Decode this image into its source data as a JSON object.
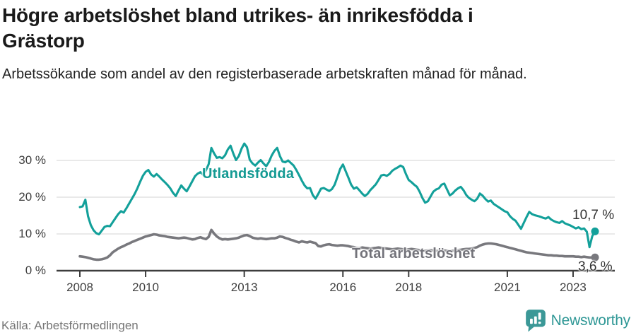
{
  "header": {
    "title_line1": "Högre arbetslöshet bland utrikes- än inrikesfödda i",
    "title_line2": "Grästorp",
    "subtitle": "Arbetssökande som andel av den registerbaserade arbetskraften månad för månad."
  },
  "footer": {
    "source": "Källa: Arbetsförmedlingen",
    "brand": "Newsworthy",
    "brand_color": "#2e9795"
  },
  "chart_data": {
    "type": "line",
    "x_domain": {
      "start": "2008-01",
      "end": "2023-09",
      "interval": "month"
    },
    "x_tick_years": [
      2008,
      2010,
      2013,
      2016,
      2018,
      2021,
      2023
    ],
    "y_ticks": [
      {
        "value": 0,
        "label": "0 %"
      },
      {
        "value": 10,
        "label": "10 %"
      },
      {
        "value": 20,
        "label": "20 %"
      },
      {
        "value": 30,
        "label": "30 %"
      }
    ],
    "ylim": [
      0,
      36
    ],
    "grid": "horizontal",
    "legend": "inline-labels",
    "series": [
      {
        "name": "Utlandsfödda",
        "color": "#13a09a",
        "end_label": "10,7 %",
        "end_value": 10.7,
        "values": [
          17.3,
          17.5,
          19.3,
          14.8,
          12.4,
          11.0,
          10.2,
          9.9,
          10.9,
          11.9,
          12.2,
          12.1,
          13.2,
          14.3,
          15.4,
          16.2,
          15.8,
          17.0,
          18.3,
          19.6,
          20.9,
          22.4,
          24.2,
          25.8,
          26.9,
          27.4,
          26.2,
          25.6,
          26.3,
          25.6,
          24.8,
          24.1,
          23.3,
          22.4,
          21.2,
          20.3,
          21.8,
          23.2,
          22.3,
          21.6,
          22.9,
          24.3,
          25.7,
          26.4,
          26.8,
          26.1,
          27.3,
          29.0,
          33.4,
          31.9,
          30.7,
          30.9,
          30.6,
          31.4,
          33.0,
          34.0,
          31.9,
          30.1,
          31.2,
          33.2,
          34.6,
          33.6,
          30.2,
          29.2,
          28.6,
          29.4,
          30.1,
          29.2,
          28.4,
          29.6,
          31.3,
          32.6,
          33.4,
          31.2,
          29.7,
          29.5,
          30.0,
          29.3,
          28.6,
          27.4,
          26.0,
          24.5,
          23.2,
          22.4,
          22.5,
          20.6,
          19.6,
          20.9,
          22.3,
          22.5,
          22.1,
          21.7,
          22.2,
          23.4,
          25.5,
          27.7,
          28.9,
          27.1,
          25.3,
          23.4,
          22.3,
          22.7,
          21.9,
          21.0,
          20.3,
          20.9,
          21.9,
          22.7,
          23.5,
          24.7,
          25.9,
          26.1,
          25.8,
          26.3,
          27.2,
          27.7,
          28.1,
          28.6,
          28.2,
          26.3,
          24.7,
          24.1,
          23.4,
          22.8,
          21.5,
          19.8,
          18.5,
          18.9,
          20.2,
          21.5,
          22.1,
          22.4,
          23.4,
          23.7,
          22.1,
          20.5,
          21.0,
          21.8,
          22.4,
          22.8,
          21.9,
          20.6,
          19.8,
          19.3,
          18.9,
          19.6,
          21.0,
          20.4,
          19.5,
          18.8,
          19.1,
          18.2,
          17.7,
          17.2,
          16.7,
          16.2,
          15.9,
          14.8,
          14.1,
          13.6,
          12.5,
          11.4,
          13.0,
          14.6,
          16.0,
          15.4,
          15.1,
          14.9,
          14.7,
          14.4,
          14.2,
          14.6,
          13.9,
          13.5,
          13.2,
          13.0,
          13.5,
          12.9,
          12.6,
          12.3,
          11.9,
          11.5,
          11.8,
          11.3,
          11.5,
          10.6,
          6.4,
          9.4,
          10.7
        ]
      },
      {
        "name": "Total arbetslöshet",
        "color": "#78787d",
        "end_label": "3,6 %",
        "end_value": 3.6,
        "values": [
          3.9,
          3.8,
          3.7,
          3.5,
          3.3,
          3.1,
          3.0,
          3.0,
          3.1,
          3.3,
          3.6,
          4.2,
          5.0,
          5.5,
          6.0,
          6.4,
          6.7,
          7.1,
          7.4,
          7.8,
          8.1,
          8.4,
          8.7,
          9.0,
          9.3,
          9.5,
          9.7,
          9.9,
          9.8,
          9.6,
          9.5,
          9.4,
          9.2,
          9.1,
          9.0,
          8.9,
          8.8,
          8.9,
          9.0,
          8.9,
          8.7,
          8.5,
          8.6,
          8.9,
          9.1,
          8.8,
          8.6,
          9.2,
          11.1,
          10.1,
          9.3,
          8.8,
          8.5,
          8.6,
          8.5,
          8.6,
          8.7,
          8.8,
          9.0,
          9.3,
          9.6,
          9.7,
          9.4,
          9.0,
          8.8,
          8.7,
          8.8,
          8.7,
          8.6,
          8.7,
          8.8,
          8.8,
          9.0,
          9.3,
          9.2,
          8.9,
          8.7,
          8.4,
          8.2,
          7.9,
          7.7,
          8.0,
          7.8,
          7.7,
          7.9,
          7.7,
          7.5,
          6.7,
          6.6,
          6.9,
          7.1,
          7.2,
          7.0,
          6.9,
          6.8,
          6.9,
          6.9,
          6.8,
          6.7,
          6.5,
          6.4,
          6.2,
          6.1,
          6.3,
          6.2,
          6.1,
          6.0,
          6.1,
          6.2,
          6.3,
          6.2,
          6.1,
          6.0,
          5.9,
          5.8,
          5.9,
          6.0,
          5.9,
          5.8,
          5.7,
          5.8,
          5.9,
          5.8,
          5.7,
          5.6,
          5.5,
          5.4,
          5.5,
          5.6,
          5.5,
          5.4,
          5.3,
          5.4,
          5.5,
          5.4,
          5.3,
          5.4,
          5.5,
          5.6,
          5.7,
          5.8,
          5.9,
          5.9,
          6.0,
          6.2,
          6.4,
          6.8,
          7.1,
          7.3,
          7.4,
          7.4,
          7.3,
          7.2,
          7.0,
          6.8,
          6.6,
          6.4,
          6.2,
          6.0,
          5.8,
          5.6,
          5.4,
          5.2,
          5.0,
          4.9,
          4.8,
          4.7,
          4.6,
          4.5,
          4.4,
          4.3,
          4.2,
          4.2,
          4.1,
          4.1,
          4.0,
          4.0,
          3.9,
          3.9,
          3.9,
          3.9,
          3.8,
          3.8,
          3.7,
          3.8,
          3.7,
          3.6,
          3.6,
          3.6
        ]
      }
    ]
  }
}
